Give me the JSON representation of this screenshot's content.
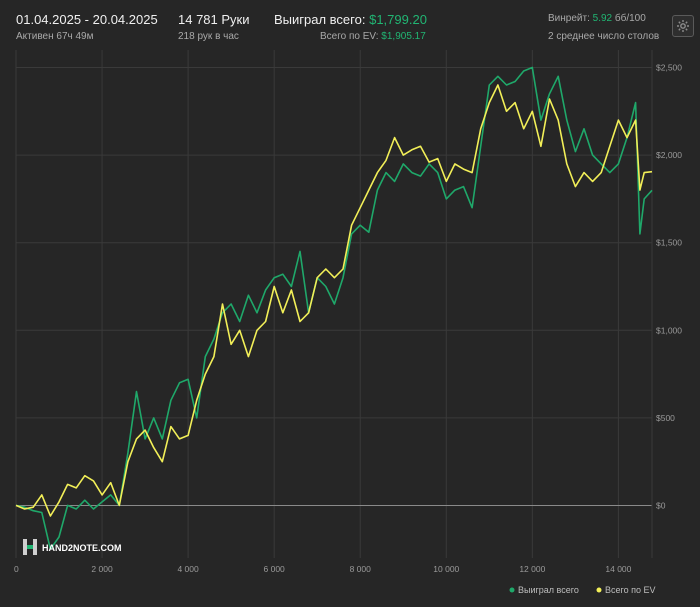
{
  "header": {
    "date_range": "01.04.2025 - 20.04.2025",
    "active": "Активен 67ч 49м",
    "hands": "14 781 Руки",
    "hands_per_hour": "218 рук в час",
    "won_label": "Выиграл всего:",
    "won_value": "$1,799.20",
    "ev_label": "Всего по EV:",
    "ev_value": "$1,905.17",
    "winrate_label": "Винрейт:",
    "winrate_value": "5.92",
    "winrate_unit": "бб/100",
    "tables": "2 среднее число столов",
    "settings_icon": "gear-icon"
  },
  "logo": {
    "text": "HAND2NOTE.COM"
  },
  "legend": {
    "won": "Выиграл всего",
    "ev": "Всего по EV"
  },
  "colors": {
    "background": "#262626",
    "won": "#1fa86a",
    "ev": "#f2ef58",
    "grid": "#3a3a3a",
    "zero": "#8a8a8a"
  },
  "chart_data": {
    "type": "line",
    "xlim": [
      0,
      14781
    ],
    "ylim": [
      -300,
      2600
    ],
    "x_ticks": [
      0,
      2000,
      4000,
      6000,
      8000,
      10000,
      12000,
      14000
    ],
    "x_tick_labels": [
      "0",
      "2 000",
      "4 000",
      "6 000",
      "8 000",
      "10 000",
      "12 000",
      "14 000"
    ],
    "y_ticks": [
      0,
      500,
      1000,
      1500,
      2000,
      2500
    ],
    "y_tick_labels": [
      "$0",
      "$500",
      "$1,000",
      "$1,500",
      "$2,000",
      "$2,500"
    ],
    "series": [
      {
        "name": "Выиграл всего",
        "color": "#1fa86a",
        "x": [
          0,
          200,
          400,
          600,
          800,
          1000,
          1200,
          1400,
          1600,
          1800,
          2000,
          2200,
          2400,
          2600,
          2800,
          3000,
          3200,
          3400,
          3600,
          3800,
          4000,
          4200,
          4400,
          4600,
          4800,
          5000,
          5200,
          5400,
          5600,
          5800,
          6000,
          6200,
          6400,
          6600,
          6800,
          7000,
          7200,
          7400,
          7600,
          7800,
          8000,
          8200,
          8400,
          8600,
          8800,
          9000,
          9200,
          9400,
          9600,
          9800,
          10000,
          10200,
          10400,
          10600,
          10800,
          11000,
          11200,
          11400,
          11600,
          11800,
          12000,
          12200,
          12400,
          12600,
          12800,
          13000,
          13200,
          13400,
          13600,
          13800,
          14000,
          14200,
          14400,
          14500,
          14600,
          14781
        ],
        "values": [
          0,
          -10,
          -30,
          -40,
          -250,
          -180,
          0,
          -20,
          30,
          -20,
          20,
          60,
          0,
          300,
          650,
          380,
          500,
          380,
          600,
          700,
          720,
          500,
          850,
          950,
          1100,
          1150,
          1050,
          1200,
          1100,
          1230,
          1300,
          1320,
          1250,
          1450,
          1100,
          1300,
          1250,
          1150,
          1300,
          1550,
          1600,
          1560,
          1800,
          1900,
          1850,
          1950,
          1900,
          1880,
          1950,
          1900,
          1750,
          1800,
          1820,
          1700,
          2050,
          2400,
          2450,
          2400,
          2420,
          2480,
          2500,
          2200,
          2350,
          2450,
          2200,
          2020,
          2150,
          2000,
          1950,
          1900,
          1950,
          2100,
          2300,
          1550,
          1750,
          1799.2
        ]
      },
      {
        "name": "Всего по EV",
        "color": "#f2ef58",
        "x": [
          0,
          200,
          400,
          600,
          800,
          1000,
          1200,
          1400,
          1600,
          1800,
          2000,
          2200,
          2400,
          2600,
          2800,
          3000,
          3200,
          3400,
          3600,
          3800,
          4000,
          4200,
          4400,
          4600,
          4800,
          5000,
          5200,
          5400,
          5600,
          5800,
          6000,
          6200,
          6400,
          6600,
          6800,
          7000,
          7200,
          7400,
          7600,
          7800,
          8000,
          8200,
          8400,
          8600,
          8800,
          9000,
          9200,
          9400,
          9600,
          9800,
          10000,
          10200,
          10400,
          10600,
          10800,
          11000,
          11200,
          11400,
          11600,
          11800,
          12000,
          12200,
          12400,
          12600,
          12800,
          13000,
          13200,
          13400,
          13600,
          13800,
          14000,
          14200,
          14400,
          14500,
          14600,
          14781
        ],
        "values": [
          0,
          -20,
          -10,
          60,
          -60,
          20,
          120,
          100,
          170,
          140,
          60,
          130,
          0,
          250,
          380,
          430,
          330,
          250,
          450,
          380,
          400,
          600,
          750,
          850,
          1150,
          920,
          1000,
          850,
          1000,
          1050,
          1250,
          1100,
          1230,
          1050,
          1100,
          1300,
          1350,
          1300,
          1350,
          1600,
          1700,
          1800,
          1900,
          1970,
          2100,
          2000,
          2030,
          2050,
          1960,
          1980,
          1850,
          1950,
          1920,
          1900,
          2150,
          2300,
          2400,
          2250,
          2300,
          2150,
          2250,
          2050,
          2320,
          2200,
          1950,
          1820,
          1900,
          1850,
          1900,
          2050,
          2200,
          2100,
          2200,
          1800,
          1900,
          1905.17
        ]
      }
    ]
  }
}
